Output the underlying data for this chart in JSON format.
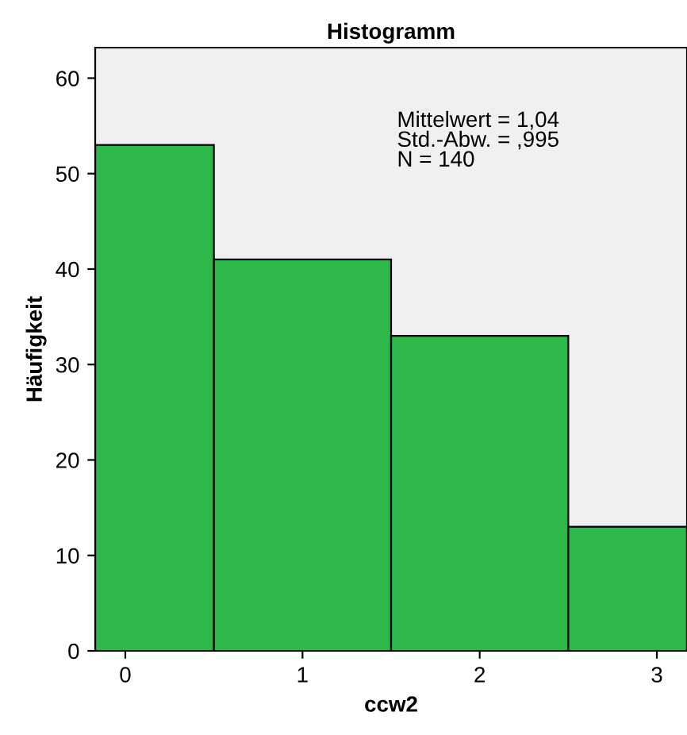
{
  "chart_data": {
    "type": "histogram",
    "title": "Histogramm",
    "xlabel": "ccw2",
    "ylabel": "Häufigkeit",
    "bins": [
      -0.17,
      0.5,
      1.5,
      2.5,
      3.17
    ],
    "values": [
      53,
      41,
      33,
      13
    ],
    "color": "#2eb84a",
    "xlim": [
      -0.17,
      3.17
    ],
    "xticks": [
      0,
      1,
      2,
      3
    ],
    "ylim": [
      0,
      63.2
    ],
    "yticks": [
      0,
      10,
      20,
      30,
      40,
      50,
      60
    ],
    "grid": false,
    "legend": false,
    "annotations": [
      "Mittelwert = 1,04\nStd.-Abw. = ,995\nN = 140"
    ]
  }
}
